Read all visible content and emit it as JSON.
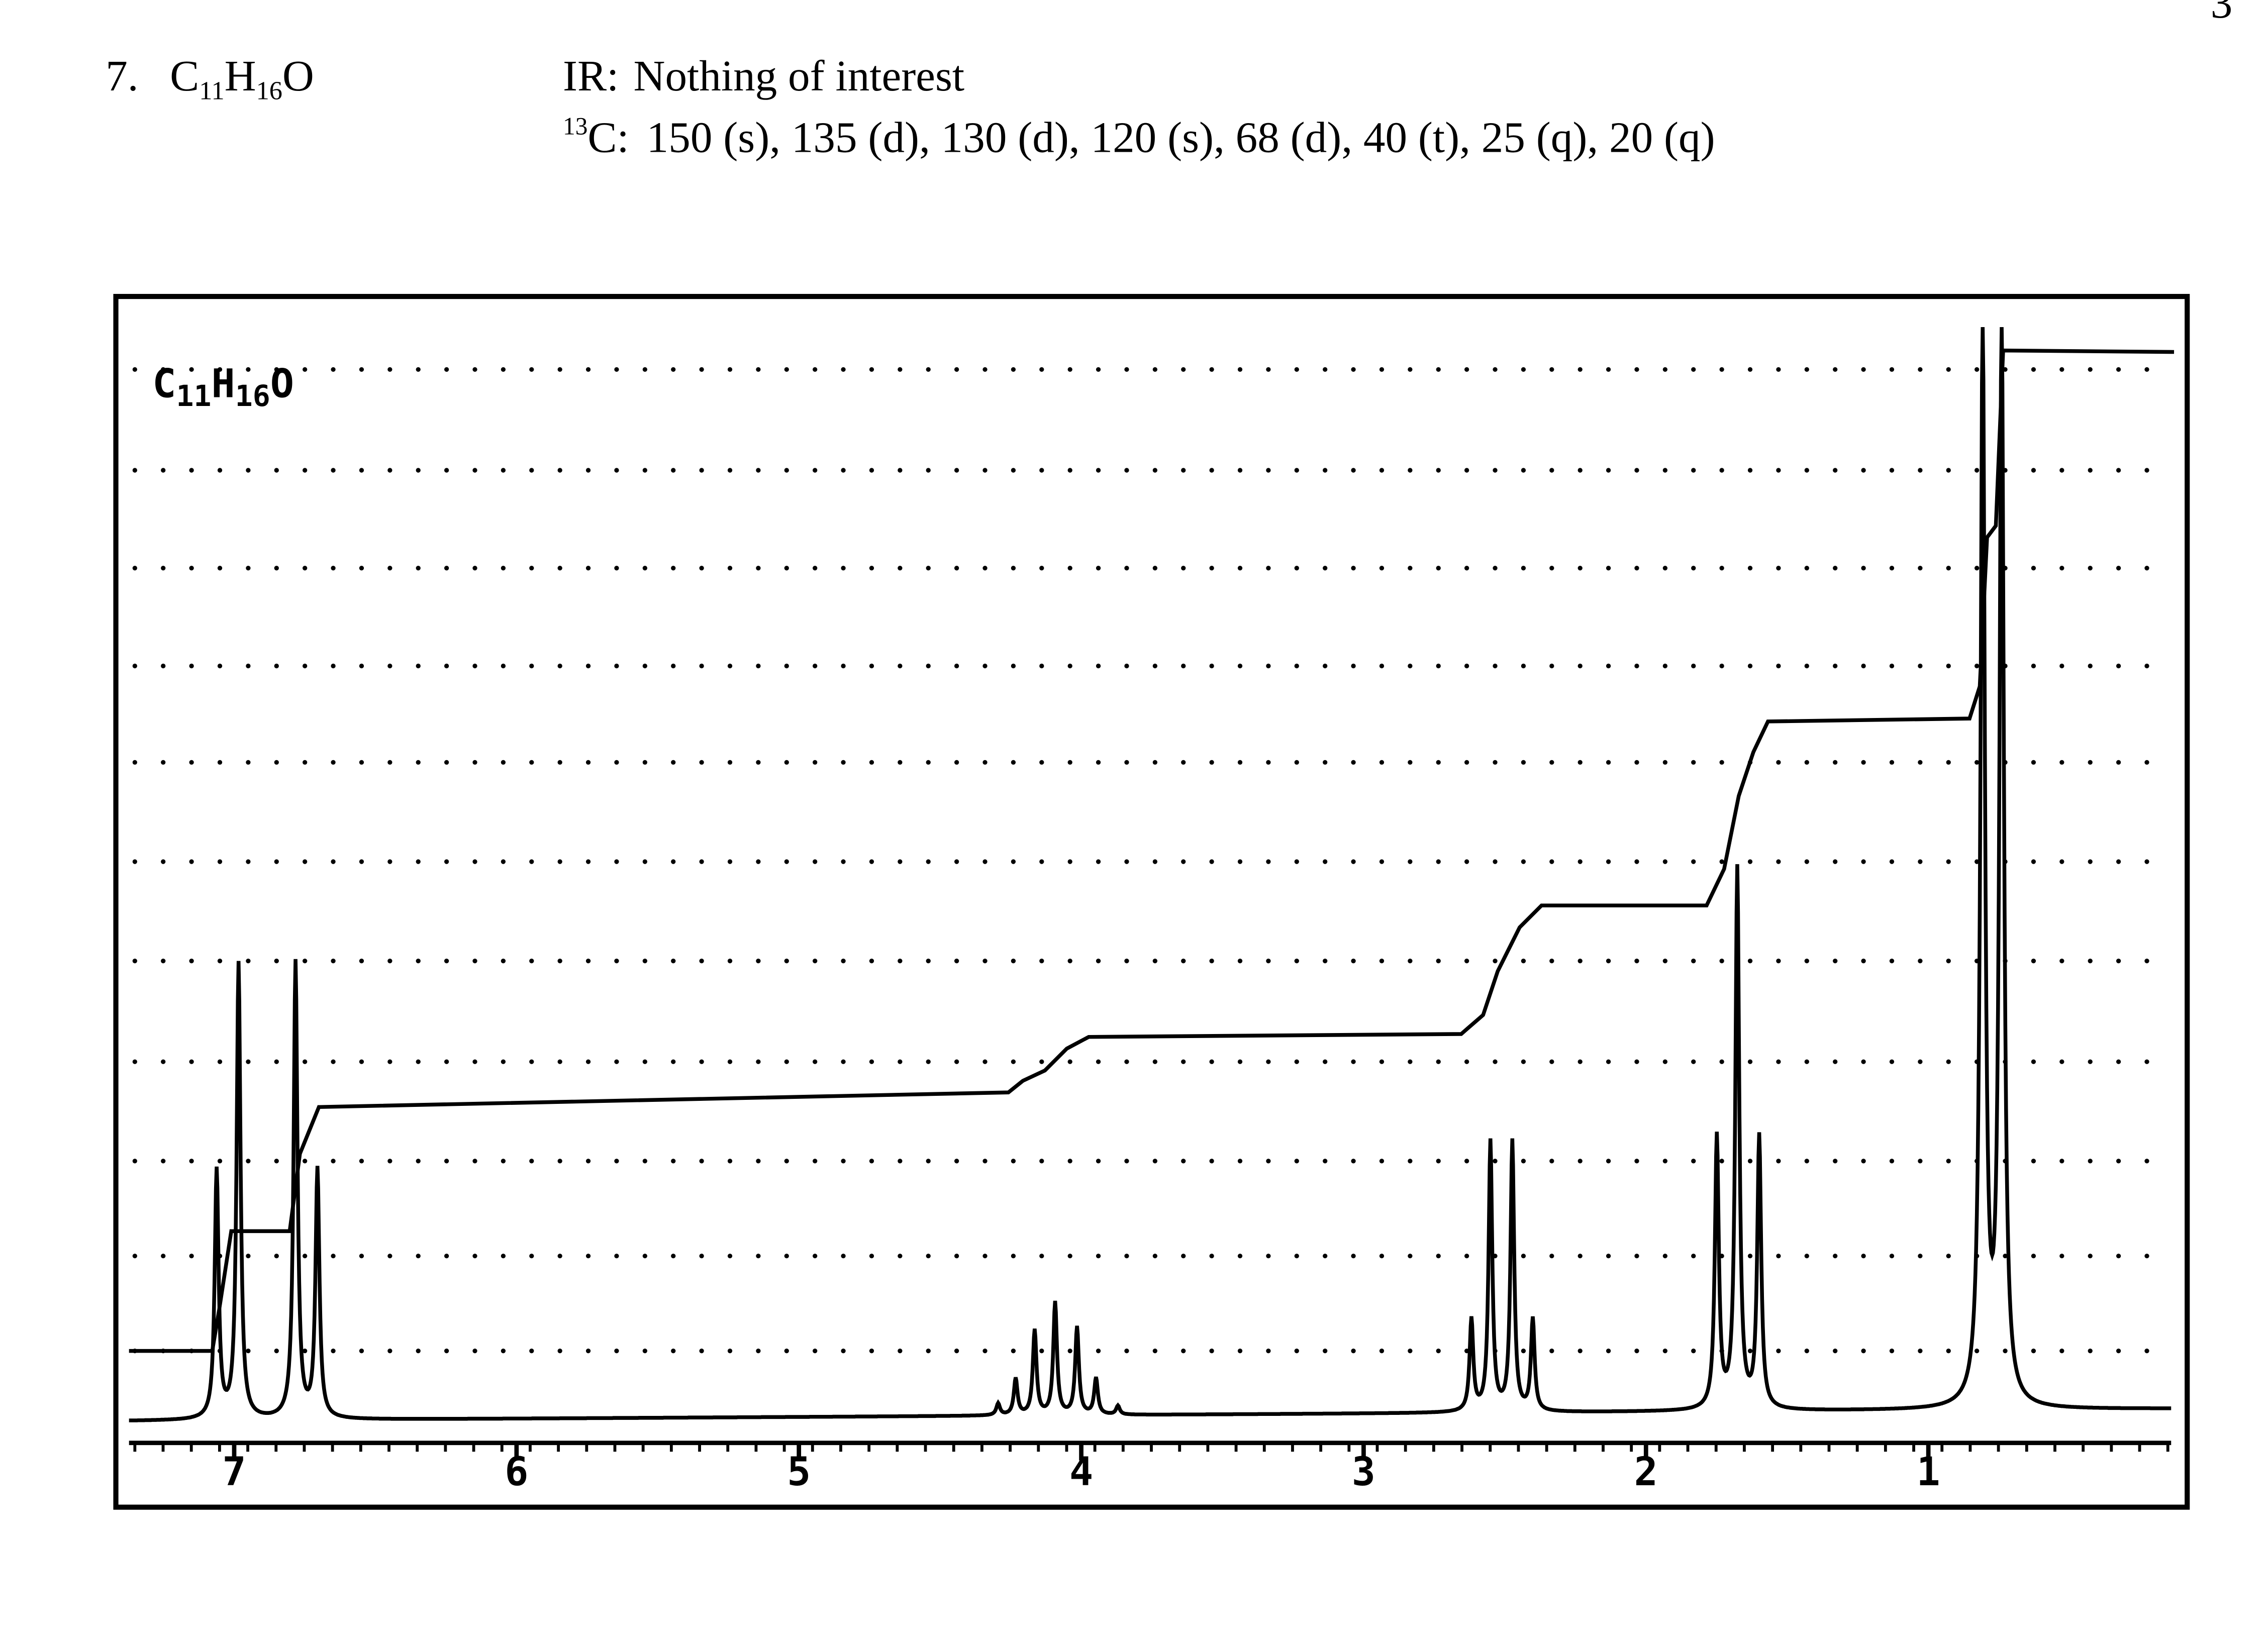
{
  "page_number": "3",
  "problem": {
    "number": "7.",
    "formula": [
      "C",
      "11",
      "H",
      "16",
      "O"
    ]
  },
  "ir": {
    "label": "IR:",
    "text": "Nothing of interest"
  },
  "c13": {
    "mass": "13",
    "label": "C:",
    "text": "150 (s), 135 (d), 130 (d), 120 (s), 68 (d), 40 (t), 25 (q), 20 (q)"
  },
  "spectrum": {
    "label": [
      "C",
      "11",
      "H",
      "16",
      "O"
    ],
    "axis_labels": [
      "7",
      "6",
      "5",
      "4",
      "3",
      "2",
      "1"
    ]
  }
}
